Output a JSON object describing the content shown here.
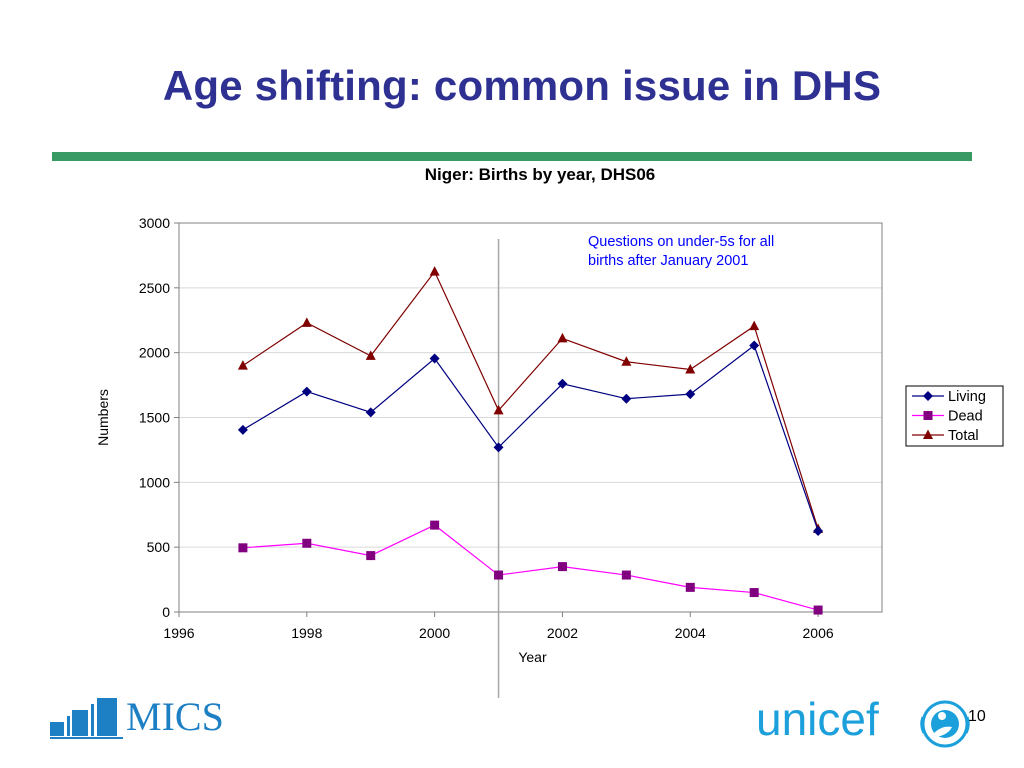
{
  "slide": {
    "title": "Age shifting: common issue in DHS",
    "page_number": "10"
  },
  "logos": {
    "left_text": "MICS",
    "left_icon": "bar-steps-icon",
    "right_text": "unicef",
    "right_icon": "unicef-emblem-icon"
  },
  "colors": {
    "title": "#2e3192",
    "rule": "#3a9a66",
    "living": "#000080",
    "dead": "#ff00ff",
    "dead_marker": "#800080",
    "total": "#800000",
    "annotation": "#0000ff"
  },
  "chart_data": {
    "type": "line",
    "title": "Niger:  Births by year, DHS06",
    "xlabel": "Year",
    "ylabel": "Numbers",
    "xlim": [
      1996,
      2007
    ],
    "ylim": [
      0,
      3000
    ],
    "xticks": [
      1996,
      1998,
      2000,
      2002,
      2004,
      2006
    ],
    "yticks": [
      0,
      500,
      1000,
      1500,
      2000,
      2500,
      3000
    ],
    "grid": "horizontal",
    "legend_position": "right",
    "x": [
      1997,
      1998,
      1999,
      2000,
      2001,
      2002,
      2003,
      2004,
      2005,
      2006
    ],
    "series": [
      {
        "name": "Living",
        "marker": "diamond",
        "values": [
          1405,
          1700,
          1540,
          1955,
          1270,
          1760,
          1645,
          1680,
          2055,
          625
        ]
      },
      {
        "name": "Dead",
        "marker": "square",
        "values": [
          495,
          530,
          435,
          670,
          285,
          350,
          285,
          190,
          150,
          15
        ]
      },
      {
        "name": "Total",
        "marker": "triangle",
        "values": [
          1900,
          2230,
          1975,
          2625,
          1555,
          2110,
          1930,
          1870,
          2205,
          640
        ]
      }
    ],
    "reference_line_x": 2001,
    "annotation_lines": [
      "Questions on under-5s for all",
      "births after January 2001"
    ]
  }
}
